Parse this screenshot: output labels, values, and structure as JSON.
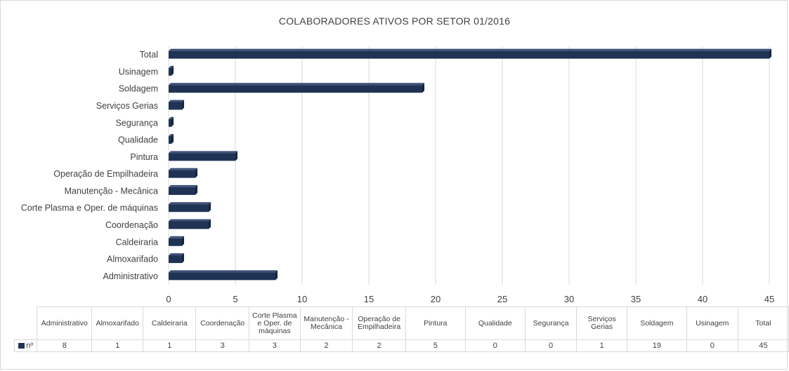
{
  "chart_data": {
    "type": "bar",
    "orientation": "horizontal",
    "title": "COLABORADORES  ATIVOS POR SETOR 01/2016",
    "categories": [
      "Administrativo",
      "Almoxarifado",
      "Caldeiraria",
      "Coordenação",
      "Corte Plasma e Oper. de máquinas",
      "Manutenção - Mecânica",
      "Operação de Empilhadeira",
      "Pintura",
      "Qualidade",
      "Segurança",
      "Serviços Gerias",
      "Soldagem",
      "Usinagem",
      "Total"
    ],
    "table_headers": [
      "Administrativo",
      "Almoxarifado",
      "Caldeiraria",
      "Coordenação",
      "Corte Plasma e Oper. de máquinas",
      "Manutenção - Mecânica",
      "Operação de Empilhadeira",
      "Pintura",
      "Qualidade",
      "Segurança",
      "Serviços Gerias",
      "Soldagem",
      "Usinagem",
      "Total"
    ],
    "series": [
      {
        "name": "nº",
        "values": [
          8,
          1,
          1,
          3,
          3,
          2,
          2,
          5,
          0,
          0,
          1,
          19,
          0,
          45
        ],
        "color": "#1f3354"
      }
    ],
    "xlim": [
      0,
      45
    ],
    "xticks": [
      0,
      5,
      10,
      15,
      20,
      25,
      30,
      35,
      40,
      45
    ],
    "grid": "vertical",
    "data_table": true
  }
}
